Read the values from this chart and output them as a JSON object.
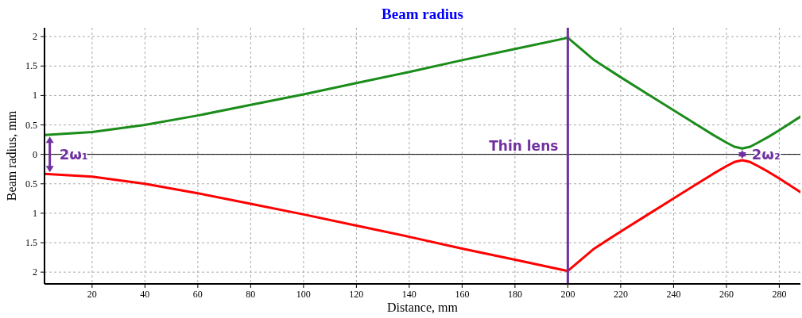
{
  "chart_data": {
    "type": "line",
    "title": "Beam radius",
    "xlabel": "Distance, mm",
    "ylabel": "Beam radius, mm",
    "xlim": [
      2,
      288
    ],
    "xticks": [
      20,
      40,
      60,
      80,
      100,
      120,
      140,
      160,
      180,
      200,
      220,
      240,
      260,
      280
    ],
    "ylim": [
      -2.2,
      2.15
    ],
    "yticks": [
      {
        "value": -2,
        "label": "2"
      },
      {
        "value": -1.5,
        "label": "1.5"
      },
      {
        "value": -1,
        "label": "1"
      },
      {
        "value": -0.5,
        "label": "0.5"
      },
      0,
      0.5,
      1,
      1.5,
      2
    ],
    "grid": true,
    "marker": "none",
    "line_style": "solid",
    "series": [
      {
        "color": "#1a8c1a",
        "x": [
          2,
          20,
          40,
          60,
          80,
          100,
          120,
          140,
          160,
          180,
          200,
          210,
          220,
          230,
          240,
          250,
          255,
          260,
          263,
          266,
          269,
          272,
          276,
          280,
          288
        ],
        "values": [
          0.33,
          0.38,
          0.5,
          0.66,
          0.84,
          1.02,
          1.21,
          1.4,
          1.6,
          1.79,
          1.98,
          1.6,
          1.31,
          1.03,
          0.75,
          0.47,
          0.33,
          0.2,
          0.13,
          0.1,
          0.13,
          0.2,
          0.3,
          0.41,
          0.64
        ]
      },
      {
        "color": "#ff0000",
        "x": [
          2,
          20,
          40,
          60,
          80,
          100,
          120,
          140,
          160,
          180,
          200,
          210,
          220,
          230,
          240,
          250,
          255,
          260,
          263,
          266,
          269,
          272,
          276,
          280,
          288
        ],
        "values": [
          -0.33,
          -0.38,
          -0.5,
          -0.66,
          -0.84,
          -1.02,
          -1.21,
          -1.4,
          -1.6,
          -1.79,
          -1.98,
          -1.6,
          -1.31,
          -1.03,
          -0.75,
          -0.47,
          -0.33,
          -0.2,
          -0.13,
          -0.1,
          -0.13,
          -0.2,
          -0.3,
          -0.41,
          -0.64
        ]
      }
    ],
    "ref_lines": [
      {
        "axis": "x",
        "value": 200,
        "label": "Thin lens",
        "color": "#7030a0"
      },
      {
        "axis": "y",
        "value": 0,
        "color": "#000000"
      }
    ],
    "annotations": [
      {
        "text": "2ω₁",
        "x": 4,
        "y": 0
      },
      {
        "text": "2ω₂",
        "x": 266,
        "y": 0
      }
    ]
  }
}
